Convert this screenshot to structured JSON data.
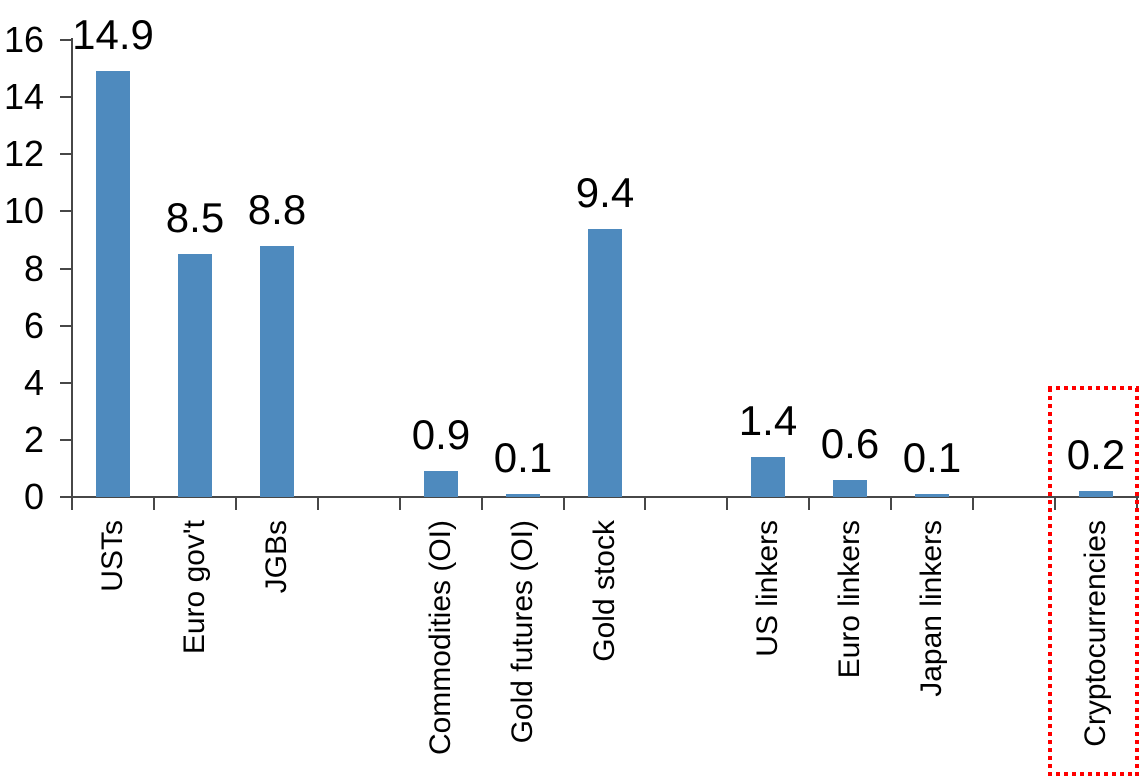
{
  "chart_data": {
    "type": "bar",
    "title": "",
    "xlabel": "",
    "ylabel": "",
    "categories": [
      "USTs",
      "Euro gov't",
      "JGBs",
      "Commodities (OI)",
      "Gold futures (OI)",
      "Gold stock",
      "US linkers",
      "Euro linkers",
      "Japan linkers",
      "Cryptocurrencies"
    ],
    "values": [
      14.9,
      8.5,
      8.8,
      0.9,
      0.1,
      9.4,
      1.4,
      0.6,
      0.1,
      0.2
    ],
    "data_labels": [
      "14.9",
      "8.5",
      "8.8",
      "0.9",
      "0.1",
      "9.4",
      "1.4",
      "0.6",
      "0.1",
      "0.2"
    ],
    "slots": [
      0,
      1,
      2,
      4,
      5,
      6,
      8,
      9,
      10,
      12
    ],
    "total_slots": 13,
    "group_gaps_after": [
      "JGBs",
      "Gold stock",
      "Japan linkers"
    ],
    "ylim": [
      0,
      16
    ],
    "ytick_step": 2,
    "yticks": [
      0,
      2,
      4,
      6,
      8,
      10,
      12,
      14,
      16
    ],
    "ytick_labels": [
      "0",
      "2",
      "4",
      "6",
      "8",
      "10",
      "12",
      "14",
      "16"
    ],
    "grid": false,
    "legend": "none",
    "bar_color": "#4e8abe",
    "axis_color": "#474747",
    "text_color": "#000000",
    "background_color": "#ffffff",
    "highlight": {
      "category": "Cryptocurrencies",
      "style": "red-dotted-box",
      "color": "#ff0000"
    }
  }
}
